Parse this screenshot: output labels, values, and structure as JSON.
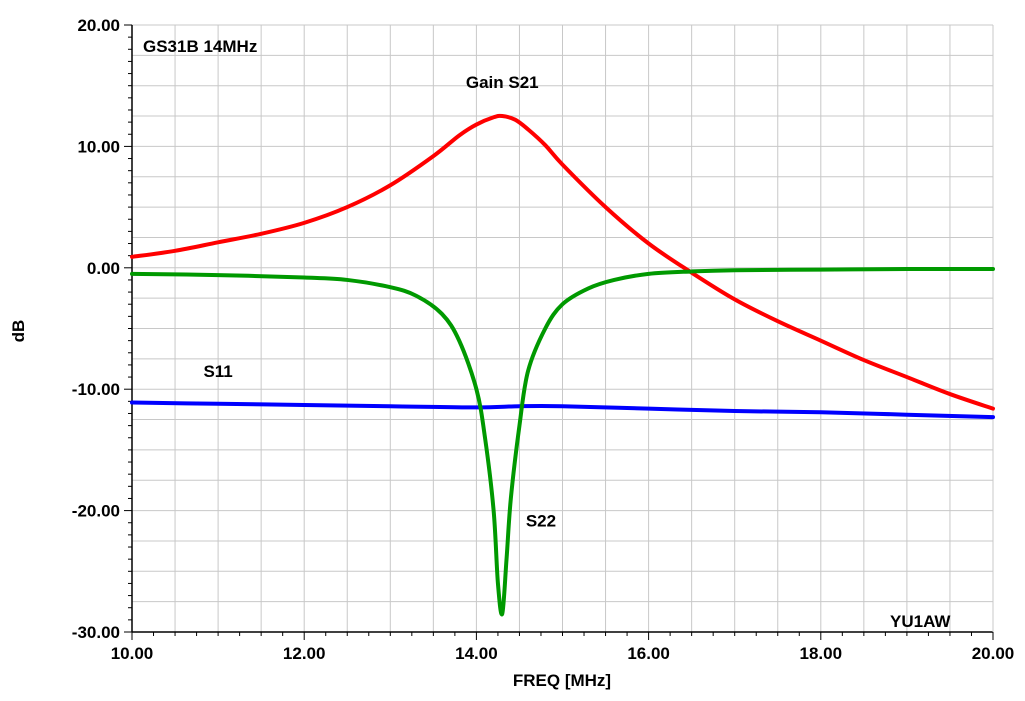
{
  "chart_data": {
    "type": "line",
    "title": "GS31B 14MHz",
    "watermark": "YU1AW",
    "xlabel": "FREQ [MHz]",
    "ylabel": "dB",
    "xlim": [
      10,
      20
    ],
    "ylim": [
      -30,
      20
    ],
    "x_ticks": [
      10,
      12,
      14,
      16,
      18,
      20
    ],
    "x_tick_labels": [
      "10.00",
      "12.00",
      "14.00",
      "16.00",
      "18.00",
      "20.00"
    ],
    "y_ticks": [
      20,
      10,
      0,
      -10,
      -20,
      -30
    ],
    "y_tick_labels": [
      "20.00",
      "10.00",
      "0.00",
      "-10.00",
      "-20.00",
      "-30.00"
    ],
    "grid": true,
    "series": [
      {
        "name": "Gain S21",
        "color": "#ff0000",
        "x": [
          10.0,
          10.5,
          11.0,
          11.5,
          12.0,
          12.5,
          13.0,
          13.5,
          13.8,
          14.0,
          14.2,
          14.3,
          14.45,
          14.6,
          14.8,
          15.0,
          15.5,
          16.0,
          16.5,
          17.0,
          17.5,
          18.0,
          18.5,
          19.0,
          19.5,
          20.0
        ],
        "y": [
          0.9,
          1.4,
          2.1,
          2.8,
          3.7,
          5.0,
          6.8,
          9.2,
          10.9,
          11.8,
          12.4,
          12.5,
          12.2,
          11.4,
          10.1,
          8.5,
          5.0,
          2.0,
          -0.4,
          -2.6,
          -4.4,
          -6.0,
          -7.6,
          -9.0,
          -10.4,
          -11.6
        ]
      },
      {
        "name": "S11",
        "color": "#0000ff",
        "x": [
          10.0,
          11.0,
          12.0,
          13.0,
          14.0,
          14.5,
          15.0,
          16.0,
          17.0,
          18.0,
          19.0,
          20.0
        ],
        "y": [
          -11.1,
          -11.2,
          -11.3,
          -11.4,
          -11.5,
          -11.4,
          -11.4,
          -11.6,
          -11.8,
          -11.9,
          -12.1,
          -12.3
        ]
      },
      {
        "name": "S22",
        "color": "#009900",
        "x": [
          10.0,
          11.0,
          12.0,
          12.5,
          13.0,
          13.3,
          13.6,
          13.8,
          14.0,
          14.1,
          14.2,
          14.25,
          14.3,
          14.35,
          14.4,
          14.5,
          14.6,
          14.8,
          15.0,
          15.3,
          15.6,
          16.0,
          16.5,
          17.0,
          18.0,
          19.0,
          20.0
        ],
        "y": [
          -0.5,
          -0.6,
          -0.8,
          -1.0,
          -1.6,
          -2.3,
          -3.8,
          -6.0,
          -10.0,
          -14.0,
          -20.0,
          -26.0,
          -28.5,
          -24.0,
          -19.0,
          -13.0,
          -8.5,
          -5.0,
          -3.0,
          -1.7,
          -1.0,
          -0.5,
          -0.3,
          -0.2,
          -0.15,
          -0.1,
          -0.1
        ]
      }
    ],
    "annotations": [
      {
        "text": "Gain S21",
        "x": 14.3,
        "y": 14.8
      },
      {
        "text": "S11",
        "x": 11.0,
        "y": -9.0
      },
      {
        "text": "S22",
        "x": 14.75,
        "y": -21.3
      }
    ]
  }
}
